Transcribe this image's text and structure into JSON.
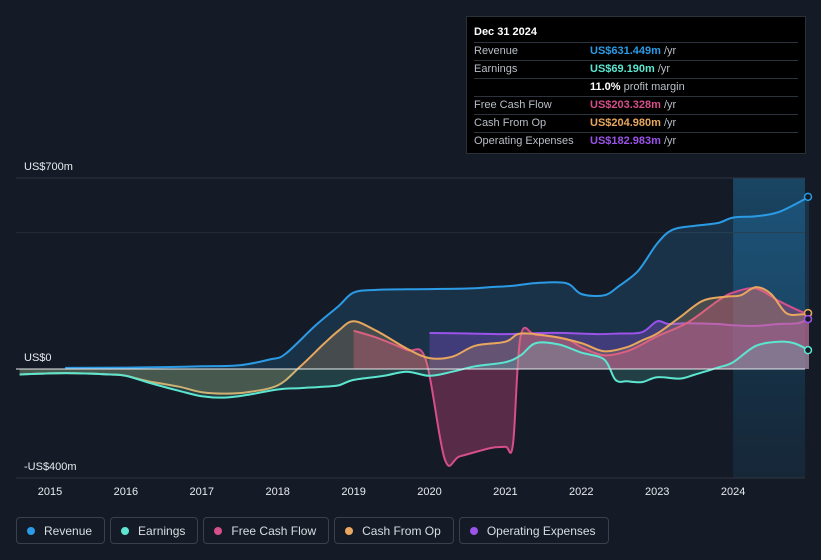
{
  "tooltip": {
    "date": "Dec 31 2024",
    "rows": [
      {
        "label": "Revenue",
        "value": "US$631.449m",
        "unit": "/yr",
        "color": "#2b9be6"
      },
      {
        "label": "Earnings",
        "value": "US$69.190m",
        "unit": "/yr",
        "color": "#5ce6d0"
      },
      {
        "label": "",
        "value": "11.0%",
        "unit": "profit margin",
        "color": "#ffffff"
      },
      {
        "label": "Free Cash Flow",
        "value": "US$203.328m",
        "unit": "/yr",
        "color": "#d64e8a"
      },
      {
        "label": "Cash From Op",
        "value": "US$204.980m",
        "unit": "/yr",
        "color": "#e8a75e"
      },
      {
        "label": "Operating Expenses",
        "value": "US$182.983m",
        "unit": "/yr",
        "color": "#9b53ea"
      }
    ]
  },
  "legend": [
    {
      "label": "Revenue",
      "color": "#2b9be6"
    },
    {
      "label": "Earnings",
      "color": "#5ce6d0"
    },
    {
      "label": "Free Cash Flow",
      "color": "#d64e8a"
    },
    {
      "label": "Cash From Op",
      "color": "#e8a75e"
    },
    {
      "label": "Operating Expenses",
      "color": "#9b53ea"
    }
  ],
  "chart_data": {
    "type": "line",
    "title": "",
    "ylim": [
      -400,
      700
    ],
    "y_tick_labels": [
      "US$700m",
      "US$0",
      "-US$400m"
    ],
    "x_tick_labels": [
      "2015",
      "2016",
      "2017",
      "2018",
      "2019",
      "2020",
      "2021",
      "2022",
      "2023",
      "2024"
    ],
    "x_range": [
      2014.6,
      2025.0
    ],
    "highlight_from": 2024.0,
    "series": [
      {
        "name": "Revenue",
        "color": "#2b9be6",
        "fill": true,
        "x": [
          2015.2,
          2016.0,
          2016.5,
          2017.0,
          2017.5,
          2017.9,
          2018.1,
          2018.5,
          2018.8,
          2019.0,
          2019.3,
          2019.7,
          2020.0,
          2020.5,
          2020.8,
          2021.1,
          2021.4,
          2021.8,
          2022.0,
          2022.3,
          2022.5,
          2022.75,
          2023.0,
          2023.2,
          2023.5,
          2023.8,
          2024.0,
          2024.3,
          2024.6,
          2025.0
        ],
        "y": [
          4,
          5,
          7,
          10,
          14,
          35,
          55,
          160,
          230,
          280,
          290,
          292,
          293,
          295,
          300,
          305,
          315,
          315,
          275,
          270,
          305,
          360,
          460,
          510,
          525,
          535,
          555,
          560,
          575,
          631
        ]
      },
      {
        "name": "Earnings",
        "color": "#5ce6d0",
        "fill": true,
        "x": [
          2014.6,
          2015.2,
          2015.8,
          2016.0,
          2016.3,
          2016.7,
          2017.0,
          2017.3,
          2017.6,
          2018.0,
          2018.3,
          2018.6,
          2018.8,
          2019.0,
          2019.4,
          2019.7,
          2020.0,
          2020.3,
          2020.6,
          2021.0,
          2021.2,
          2021.4,
          2021.7,
          2022.0,
          2022.3,
          2022.45,
          2022.6,
          2022.8,
          2023.0,
          2023.3,
          2023.5,
          2023.8,
          2024.0,
          2024.3,
          2024.6,
          2024.8,
          2025.0
        ],
        "y": [
          -20,
          -15,
          -20,
          -25,
          -50,
          -80,
          -100,
          -105,
          -95,
          -75,
          -70,
          -65,
          -60,
          -40,
          -25,
          -10,
          -25,
          -10,
          10,
          25,
          50,
          95,
          90,
          60,
          35,
          -40,
          -45,
          -48,
          -30,
          -35,
          -20,
          5,
          25,
          85,
          100,
          95,
          69
        ]
      },
      {
        "name": "Free Cash Flow",
        "color": "#d64e8a",
        "fill": true,
        "x": [
          2019.0,
          2019.3,
          2019.7,
          2019.95,
          2020.2,
          2020.4,
          2020.8,
          2021.0,
          2021.1,
          2021.2,
          2021.4,
          2021.8,
          2022.0,
          2022.3,
          2022.6,
          2022.8,
          2023.0,
          2023.4,
          2023.8,
          2024.0,
          2024.3,
          2024.6,
          2024.9,
          2025.0
        ],
        "y": [
          140,
          115,
          70,
          35,
          -330,
          -320,
          -290,
          -285,
          -275,
          120,
          125,
          110,
          80,
          50,
          65,
          90,
          120,
          170,
          250,
          280,
          295,
          250,
          210,
          203
        ]
      },
      {
        "name": "Cash From Op",
        "color": "#e8a75e",
        "fill": true,
        "x": [
          2014.6,
          2015.2,
          2015.8,
          2016.0,
          2016.3,
          2016.7,
          2017.0,
          2017.3,
          2017.6,
          2018.0,
          2018.3,
          2018.6,
          2018.8,
          2019.0,
          2019.3,
          2019.7,
          2020.0,
          2020.3,
          2020.6,
          2021.0,
          2021.2,
          2021.6,
          2022.0,
          2022.3,
          2022.6,
          2022.8,
          2023.0,
          2023.3,
          2023.6,
          2023.9,
          2024.1,
          2024.3,
          2024.5,
          2024.7,
          2024.9,
          2025.0
        ],
        "y": [
          -20,
          -15,
          -20,
          -25,
          -45,
          -65,
          -85,
          -90,
          -85,
          -60,
          10,
          90,
          140,
          175,
          140,
          75,
          40,
          45,
          85,
          100,
          130,
          120,
          95,
          65,
          80,
          105,
          130,
          190,
          250,
          265,
          270,
          300,
          275,
          205,
          200,
          205
        ]
      },
      {
        "name": "Operating Expenses",
        "color": "#9b53ea",
        "fill": true,
        "x": [
          2020.0,
          2020.5,
          2021.0,
          2021.5,
          2021.8,
          2022.2,
          2022.5,
          2022.8,
          2023.0,
          2023.15,
          2023.4,
          2023.8,
          2024.0,
          2024.3,
          2024.6,
          2024.85,
          2025.0
        ],
        "y": [
          132,
          130,
          128,
          132,
          132,
          128,
          130,
          135,
          175,
          165,
          168,
          165,
          160,
          158,
          165,
          168,
          183
        ]
      }
    ]
  }
}
